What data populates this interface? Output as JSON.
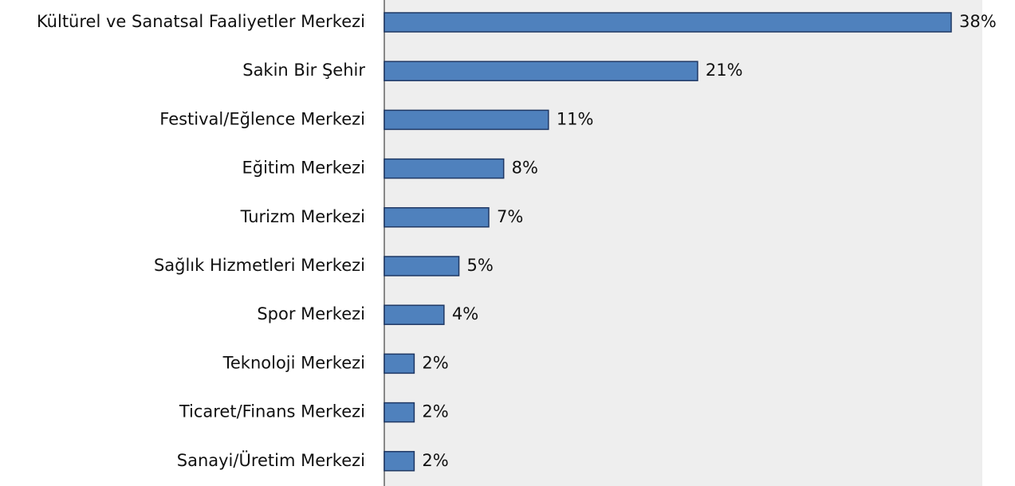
{
  "chart_data": {
    "type": "bar",
    "orientation": "horizontal",
    "categories": [
      "Kültürel ve Sanatsal Faaliyetler Merkezi",
      "Sakin Bir Şehir",
      "Festival/Eğlence Merkezi",
      "Eğitim Merkezi",
      "Turizm Merkezi",
      "Sağlık Hizmetleri Merkezi",
      "Spor Merkezi",
      "Teknoloji Merkezi",
      "Ticaret/Finans Merkezi",
      "Sanayi/Üretim Merkezi"
    ],
    "values": [
      38,
      21,
      11,
      8,
      7,
      5,
      4,
      2,
      2,
      2
    ],
    "value_labels": [
      "38%",
      "21%",
      "11%",
      "8%",
      "7%",
      "5%",
      "4%",
      "2%",
      "2%",
      "2%"
    ],
    "color": "#4f81bd"
  }
}
